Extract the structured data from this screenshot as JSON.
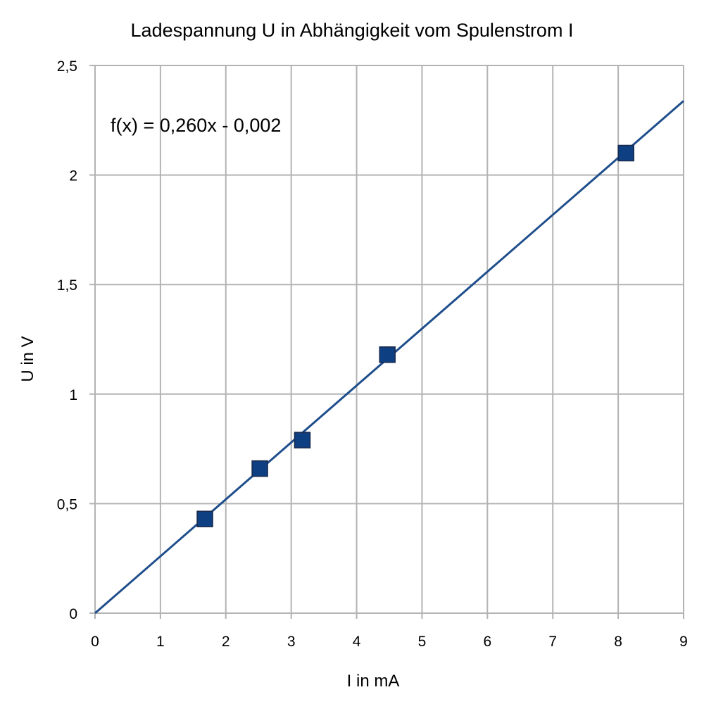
{
  "chart_data": {
    "type": "scatter",
    "title": "Ladespannung U in Abhängigkeit vom Spulenstrom I",
    "xlabel": "I in mA",
    "ylabel": "U in V",
    "xlim": [
      0,
      9
    ],
    "ylim": [
      0,
      2.5
    ],
    "x_ticks": [
      "0",
      "1",
      "2",
      "3",
      "4",
      "5",
      "6",
      "7",
      "8",
      "9"
    ],
    "y_ticks": [
      "0",
      "0,5",
      "1",
      "1,5",
      "2",
      "2,5"
    ],
    "grid": true,
    "legend": "none",
    "series": [
      {
        "x": [
          1.68,
          2.52,
          3.17,
          4.47,
          8.12
        ],
        "y": [
          0.43,
          0.66,
          0.79,
          1.18,
          2.1
        ],
        "marker": "square",
        "color": "#1f4e8c"
      }
    ],
    "trendline": {
      "equation": "f(x) = 0,260x - 0,002",
      "slope": 0.26,
      "intercept": -0.002,
      "color": "#1f4e8c"
    },
    "colors": {
      "grid": "#b3b3b3",
      "marker": "#0d3f82",
      "marker_border": "#1a2a4a",
      "line": "#1f4e8c"
    }
  }
}
